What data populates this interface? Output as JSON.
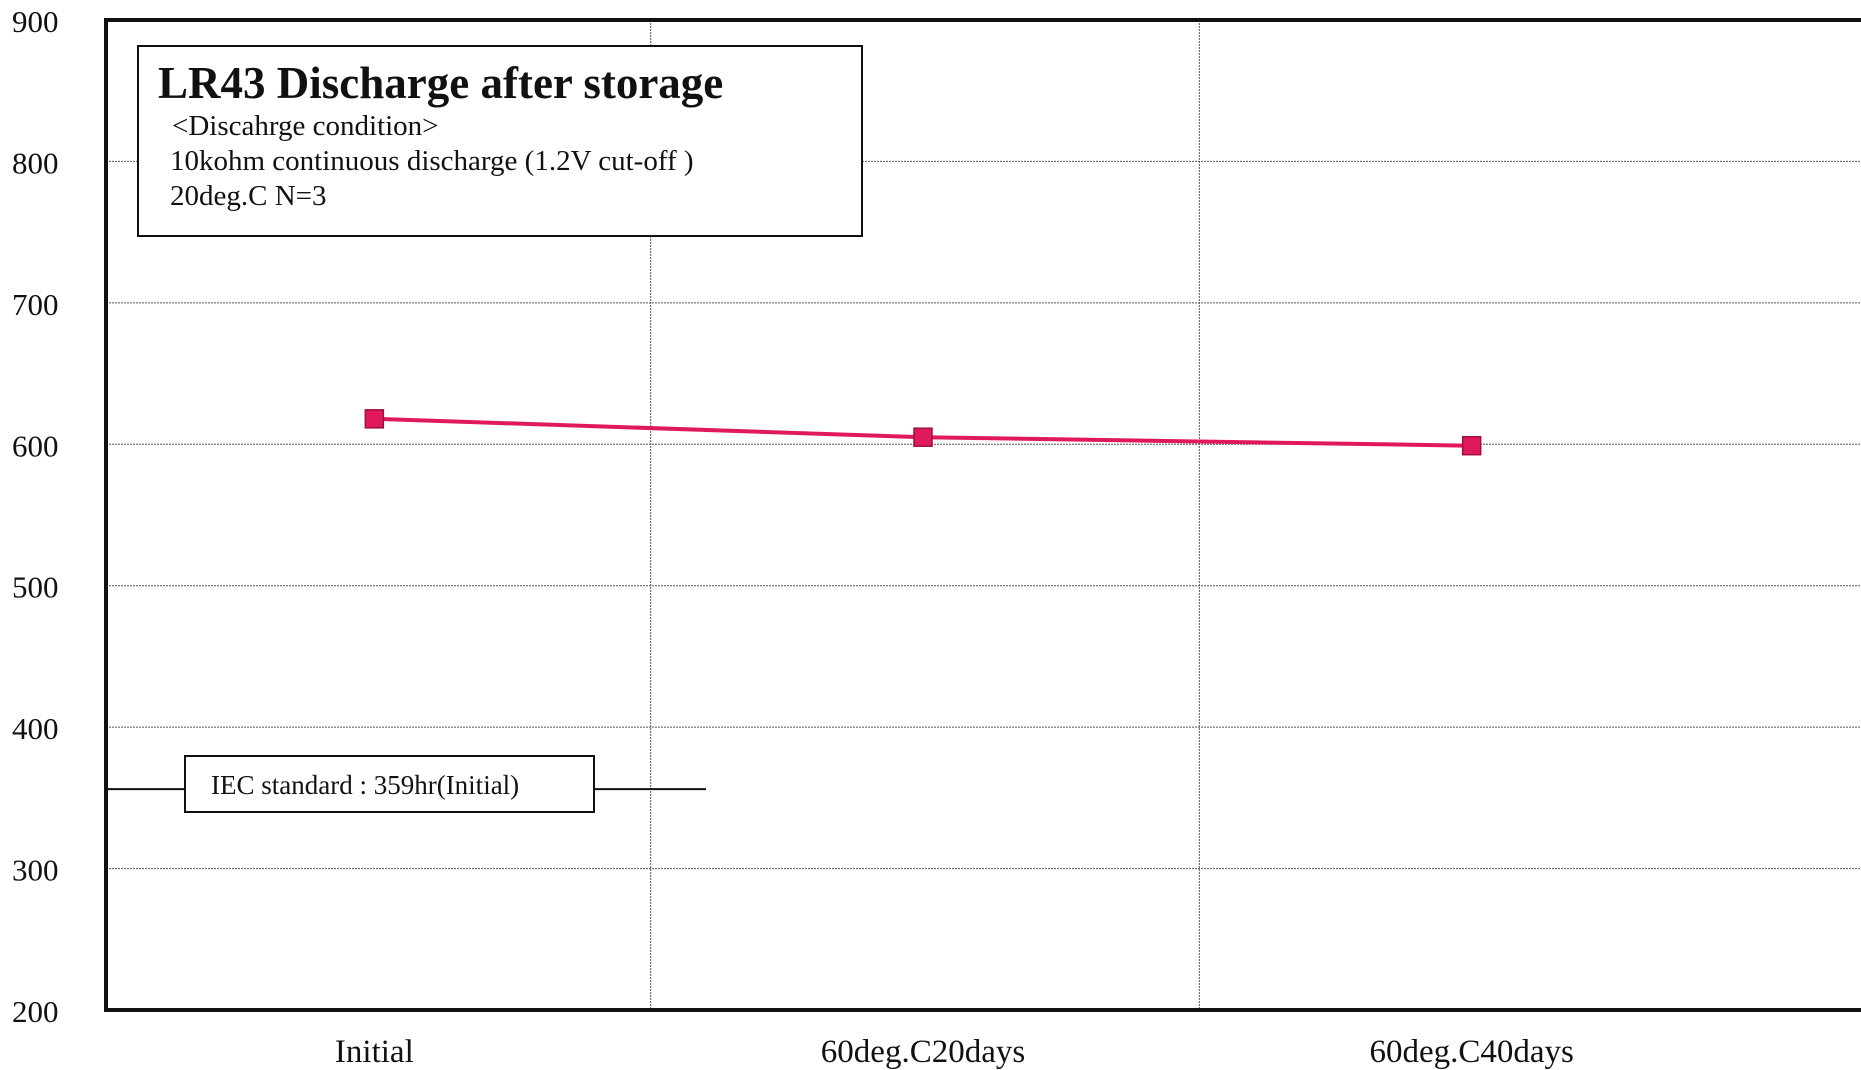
{
  "chart_data": {
    "type": "line",
    "title": "LR43 Discharge after storage",
    "condition_lines": [
      "<Discahrge condition>",
      "10kohm continuous discharge (1.2V cut-off )",
      "20deg.C N=3"
    ],
    "categories": [
      "Initial",
      "60deg.C20days",
      "60deg.C40days"
    ],
    "series": [
      {
        "values": [
          618,
          605,
          599
        ],
        "color": "#e0195a",
        "marker": "square"
      }
    ],
    "reference_line": {
      "label": "IEC standard : 359hr(Initial)",
      "value": 359
    },
    "ylim": [
      200,
      900
    ],
    "yticks": [
      200,
      300,
      400,
      500,
      600,
      700,
      800,
      900
    ],
    "xlabel": "",
    "ylabel": "",
    "grid": true,
    "legend": "none"
  }
}
